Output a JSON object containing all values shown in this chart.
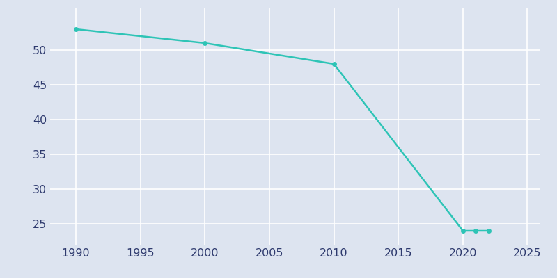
{
  "years": [
    1990,
    2000,
    2010,
    2020,
    2021,
    2022
  ],
  "population": [
    53,
    51,
    48,
    24,
    24,
    24
  ],
  "line_color": "#2ec4b6",
  "marker": "o",
  "marker_size": 4,
  "line_width": 1.8,
  "background_color": "#dde4f0",
  "plot_bg_color": "#dde4f0",
  "grid_color": "#ffffff",
  "xlim": [
    1988,
    2026
  ],
  "ylim": [
    22,
    56
  ],
  "xticks": [
    1990,
    1995,
    2000,
    2005,
    2010,
    2015,
    2020,
    2025
  ],
  "yticks": [
    25,
    30,
    35,
    40,
    45,
    50
  ],
  "tick_label_color": "#2e3a6e",
  "tick_fontsize": 11.5
}
